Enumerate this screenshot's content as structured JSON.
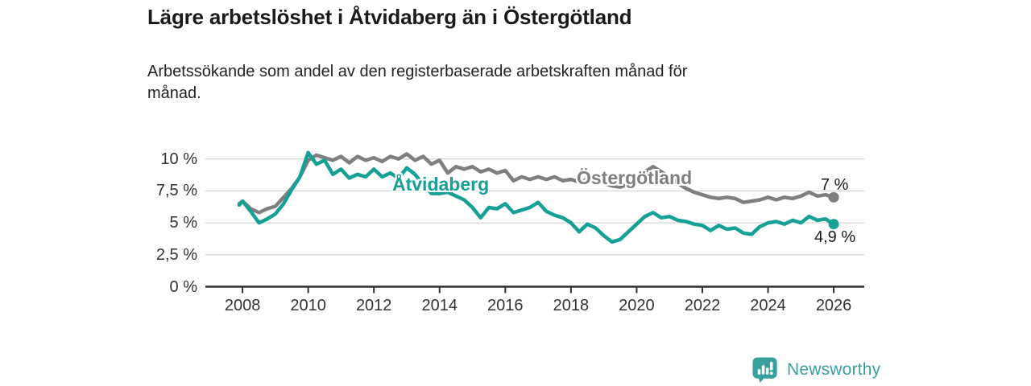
{
  "subtitle_lines": [
    "Arbetssökande som andel av den registerbaserade arbetskraften månad för",
    "månad."
  ],
  "branding": {
    "name": "Newsworthy",
    "icon": "bar-chart-speech-bubble-icon",
    "color": "#3aa09e"
  },
  "chart_data": {
    "type": "line",
    "title": "Lägre arbetslöshet i Åtvidaberg än i Östergötland",
    "subtitle": "Arbetssökande som andel av den registerbaserade arbetskraften månad för månad.",
    "xlabel": "",
    "ylabel": "",
    "grid": "horizontal",
    "legend_position": "inline-labels",
    "xlim": [
      2006.87,
      2026.93
    ],
    "ylim": [
      0,
      10.8
    ],
    "y_ticks": [
      {
        "v": 0,
        "label": "0 %"
      },
      {
        "v": 2.5,
        "label": "2,5 %"
      },
      {
        "v": 5,
        "label": "5 %"
      },
      {
        "v": 7.5,
        "label": "7,5 %"
      },
      {
        "v": 10,
        "label": "10 %"
      }
    ],
    "x_ticks": [
      {
        "v": 2008,
        "label": "2008"
      },
      {
        "v": 2010,
        "label": "2010"
      },
      {
        "v": 2012,
        "label": "2012"
      },
      {
        "v": 2014,
        "label": "2014"
      },
      {
        "v": 2016,
        "label": "2016"
      },
      {
        "v": 2018,
        "label": "2018"
      },
      {
        "v": 2020,
        "label": "2020"
      },
      {
        "v": 2022,
        "label": "2022"
      },
      {
        "v": 2024,
        "label": "2024"
      },
      {
        "v": 2026,
        "label": "2026"
      }
    ],
    "x": [
      2007.9,
      2008,
      2008.25,
      2008.5,
      2008.75,
      2009,
      2009.25,
      2009.5,
      2009.75,
      2010,
      2010.25,
      2010.5,
      2010.75,
      2011,
      2011.25,
      2011.5,
      2011.75,
      2012,
      2012.25,
      2012.5,
      2012.75,
      2013,
      2013.25,
      2013.5,
      2013.75,
      2014,
      2014.25,
      2014.5,
      2014.75,
      2015,
      2015.25,
      2015.5,
      2015.75,
      2016,
      2016.25,
      2016.5,
      2016.75,
      2017,
      2017.25,
      2017.5,
      2017.75,
      2018,
      2018.25,
      2018.5,
      2018.75,
      2019,
      2019.25,
      2019.5,
      2019.75,
      2020,
      2020.25,
      2020.5,
      2020.75,
      2021,
      2021.25,
      2021.5,
      2021.75,
      2022,
      2022.25,
      2022.5,
      2022.75,
      2023,
      2023.25,
      2023.5,
      2023.75,
      2024,
      2024.25,
      2024.5,
      2024.75,
      2025,
      2025.25,
      2025.5,
      2025.75,
      2026
    ],
    "series": [
      {
        "name": "Åtvidaberg",
        "color": "#17a095",
        "end_label": "4,9 %",
        "end_value": 4.9,
        "values": [
          6.4,
          6.7,
          5.9,
          5.0,
          5.3,
          5.7,
          6.5,
          7.6,
          8.6,
          10.5,
          9.6,
          9.9,
          8.8,
          9.2,
          8.5,
          8.8,
          8.6,
          9.2,
          8.6,
          8.9,
          8.5,
          9.3,
          8.8,
          8.0,
          7.3,
          7.3,
          7.4,
          7.1,
          6.8,
          6.2,
          5.4,
          6.2,
          6.1,
          6.5,
          5.8,
          6.0,
          6.2,
          6.6,
          5.9,
          5.6,
          5.4,
          5.0,
          4.3,
          4.9,
          4.6,
          4.0,
          3.5,
          3.7,
          4.3,
          4.9,
          5.5,
          5.8,
          5.4,
          5.5,
          5.2,
          5.1,
          4.9,
          4.8,
          4.4,
          4.8,
          4.5,
          4.6,
          4.2,
          4.1,
          4.7,
          5.0,
          5.1,
          4.9,
          5.2,
          5.0,
          5.5,
          5.2,
          5.3,
          4.9
        ]
      },
      {
        "name": "Östergötland",
        "color": "#7f7f7f",
        "end_label": "7 %",
        "end_value": 7.0,
        "values": [
          6.5,
          6.7,
          6.1,
          5.8,
          6.1,
          6.3,
          7.0,
          7.7,
          8.6,
          9.9,
          10.3,
          10.1,
          9.9,
          10.2,
          9.7,
          10.2,
          9.9,
          10.1,
          9.8,
          10.2,
          10.0,
          10.4,
          9.9,
          10.2,
          9.6,
          9.9,
          8.9,
          9.4,
          9.2,
          9.4,
          9.0,
          9.2,
          8.9,
          9.1,
          8.3,
          8.6,
          8.4,
          8.6,
          8.4,
          8.6,
          8.3,
          8.4,
          8.2,
          8.4,
          8.2,
          8.1,
          7.9,
          7.8,
          8.0,
          8.4,
          9.0,
          9.4,
          9.0,
          8.6,
          8.1,
          7.7,
          7.4,
          7.2,
          7.0,
          6.9,
          7.0,
          6.9,
          6.6,
          6.7,
          6.8,
          7.0,
          6.8,
          7.0,
          6.9,
          7.1,
          7.4,
          7.1,
          7.2,
          7.0
        ]
      }
    ]
  }
}
